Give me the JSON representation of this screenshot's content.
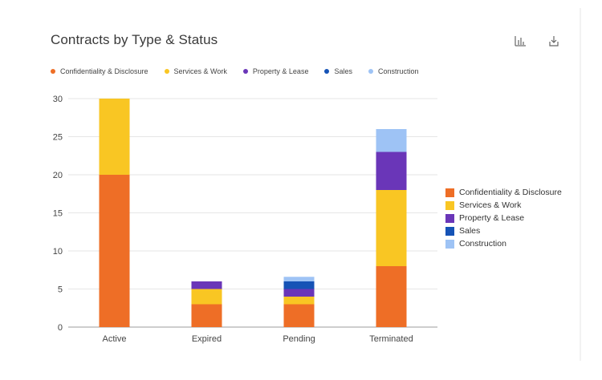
{
  "title": "Contracts by Type & Status",
  "icons": {
    "chart": "bar-chart-icon",
    "download": "download-icon"
  },
  "colors": {
    "Confidentiality & Disclosure": "#ee6e26",
    "Services & Work": "#f9c623",
    "Property & Lease": "#6a36b8",
    "Sales": "#1553b6",
    "Construction": "#9ec3f5"
  },
  "chart_data": {
    "type": "bar",
    "stacked": true,
    "title": "Contracts by Type & Status",
    "categories": [
      "Active",
      "Expired",
      "Pending",
      "Terminated"
    ],
    "series": [
      {
        "name": "Confidentiality & Disclosure",
        "values": [
          20,
          3,
          3,
          8
        ]
      },
      {
        "name": "Services & Work",
        "values": [
          10,
          2,
          1,
          10
        ]
      },
      {
        "name": "Property & Lease",
        "values": [
          0,
          1,
          1,
          5
        ]
      },
      {
        "name": "Sales",
        "values": [
          0,
          0,
          1,
          0
        ]
      },
      {
        "name": "Construction",
        "values": [
          0,
          0,
          0.6,
          3
        ]
      }
    ],
    "ylim": [
      0,
      30
    ],
    "yticks": [
      0,
      5,
      10,
      15,
      20,
      25,
      30
    ],
    "xlabel": "",
    "ylabel": "",
    "grid": true,
    "legend": "top and right"
  }
}
